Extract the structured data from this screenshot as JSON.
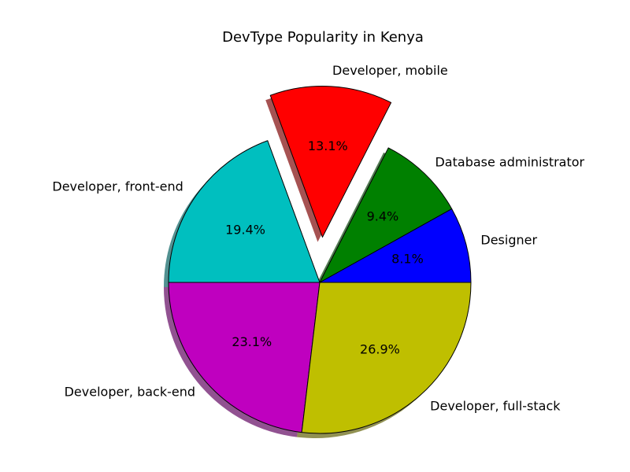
{
  "chart_data": {
    "type": "pie",
    "title": "DevType Popularity in Kenya",
    "start_angle_deg": 0,
    "direction": "counterclockwise",
    "shadow": true,
    "slices": [
      {
        "label": "Designer",
        "value": 8.1,
        "pct_label": "8.1%",
        "color": "#0000ff",
        "explode": 0
      },
      {
        "label": "Database administrator",
        "value": 9.4,
        "pct_label": "9.4%",
        "color": "#008000",
        "explode": 0
      },
      {
        "label": "Developer, mobile",
        "value": 13.1,
        "pct_label": "13.1%",
        "color": "#ff0000",
        "explode": 0.3
      },
      {
        "label": "Developer, front-end",
        "value": 19.4,
        "pct_label": "19.4%",
        "color": "#00bfbf",
        "explode": 0
      },
      {
        "label": "Developer, back-end",
        "value": 23.1,
        "pct_label": "23.1%",
        "color": "#bf00bf",
        "explode": 0
      },
      {
        "label": "Developer, full-stack",
        "value": 26.9,
        "pct_label": "26.9%",
        "color": "#bfbf00",
        "explode": 0
      }
    ]
  }
}
